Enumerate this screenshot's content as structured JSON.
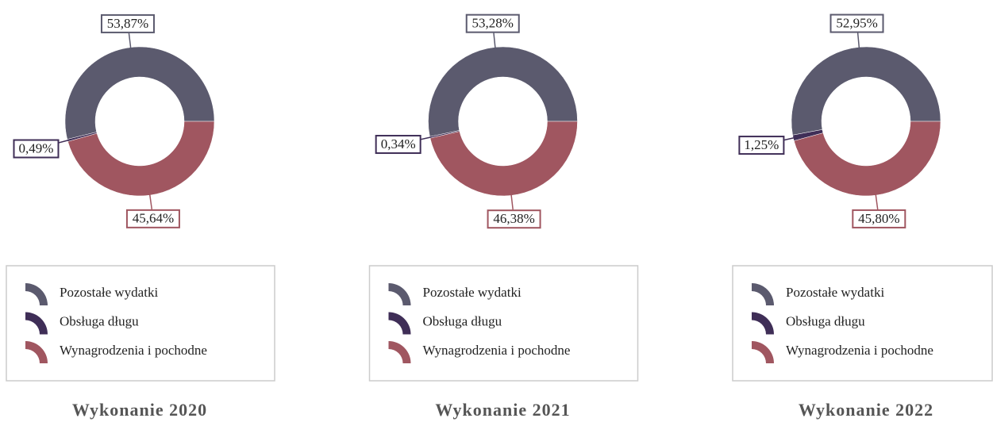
{
  "chart_data": [
    {
      "type": "pie",
      "title": "Wykonanie 2020",
      "categories": [
        "Pozostałe wydatki",
        "Obsługa długu",
        "Wynagrodzenia i pochodne"
      ],
      "values": [
        53.87,
        0.49,
        45.64
      ],
      "value_labels": [
        "53,87%",
        "0,49%",
        "45,64%"
      ],
      "colors": [
        "#5b5a6e",
        "#3f2e57",
        "#a05660"
      ]
    },
    {
      "type": "pie",
      "title": "Wykonanie 2021",
      "categories": [
        "Pozostałe wydatki",
        "Obsługa długu",
        "Wynagrodzenia i pochodne"
      ],
      "values": [
        53.28,
        0.34,
        46.38
      ],
      "value_labels": [
        "53,28%",
        "0,34%",
        "46,38%"
      ],
      "colors": [
        "#5b5a6e",
        "#3f2e57",
        "#a05660"
      ]
    },
    {
      "type": "pie",
      "title": "Wykonanie 2022",
      "categories": [
        "Pozostałe wydatki",
        "Obsługa długu",
        "Wynagrodzenia i pochodne"
      ],
      "values": [
        52.95,
        1.25,
        45.8
      ],
      "value_labels": [
        "52,95%",
        "1,25%",
        "45,80%"
      ],
      "colors": [
        "#5b5a6e",
        "#3f2e57",
        "#a05660"
      ]
    }
  ]
}
